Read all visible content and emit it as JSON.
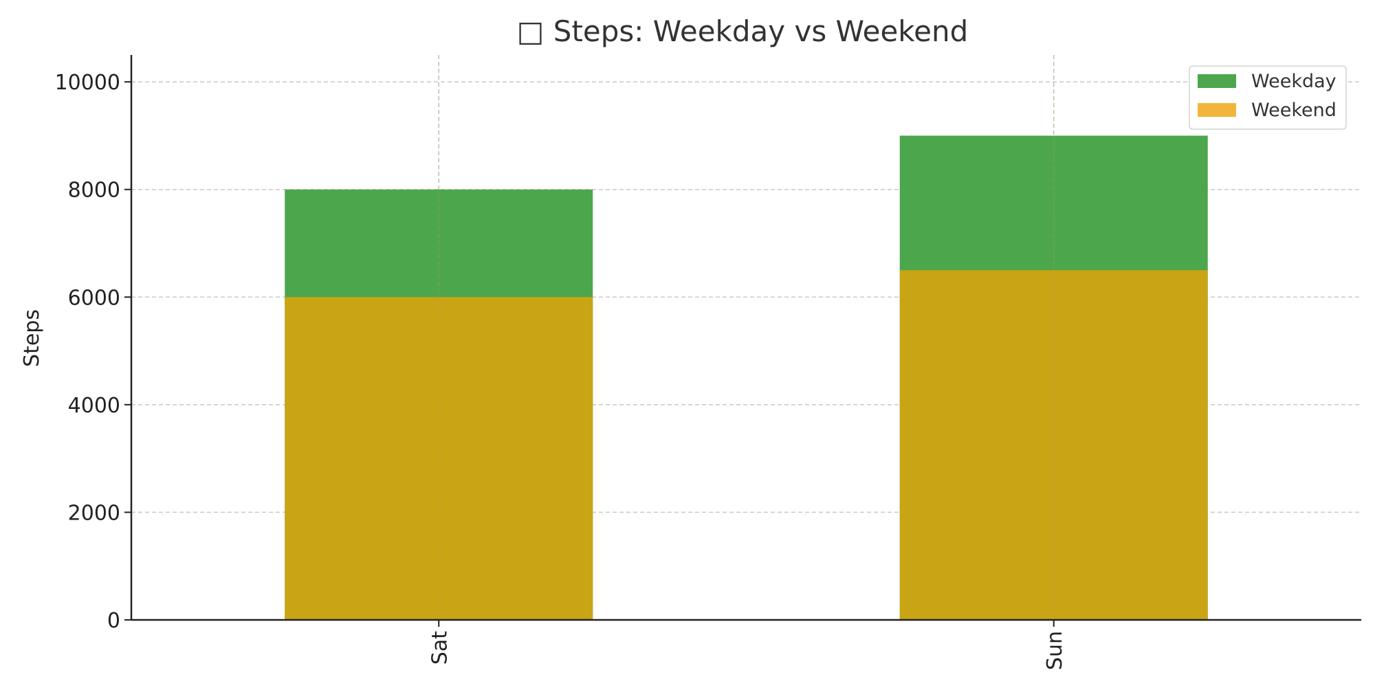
{
  "chart_data": {
    "type": "bar",
    "title": "□ Steps: Weekday vs Weekend",
    "xlabel": "",
    "ylabel": "Steps",
    "categories": [
      "Sat",
      "Sun"
    ],
    "series": [
      {
        "name": "Weekday",
        "values": [
          8000,
          9000
        ],
        "color": "#4ca64c"
      },
      {
        "name": "Weekend",
        "values": [
          6000,
          6500
        ],
        "color": "#f2b53c"
      }
    ],
    "overlap_color": "#c9a415",
    "ylim": [
      0,
      10500
    ],
    "yticks": [
      0,
      2000,
      4000,
      6000,
      8000,
      10000
    ],
    "grid": true,
    "legend_position": "top-right"
  }
}
